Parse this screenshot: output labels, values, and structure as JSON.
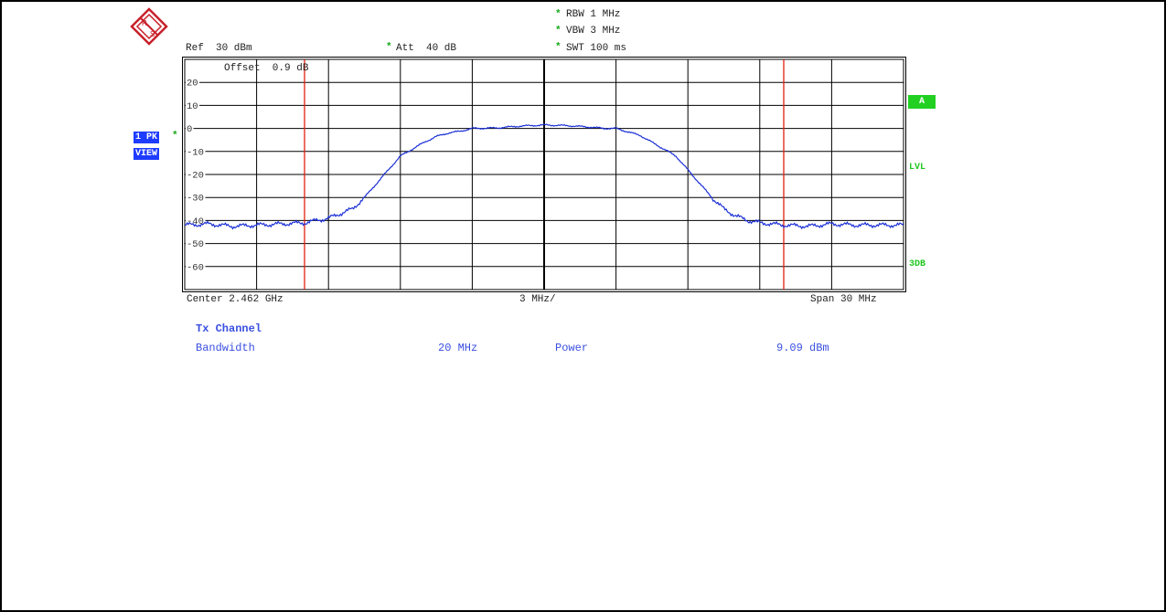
{
  "header": {
    "ref": "Ref  30 dBm",
    "att": "Att  40 dB",
    "rbw": "RBW 1 MHz",
    "vbw": "VBW 3 MHz",
    "swt": "SWT 100 ms",
    "offset": "Offset  0.9 dB",
    "star": "*"
  },
  "badges": {
    "trace": "1 PK",
    "view": "VIEW",
    "a": "A",
    "lvl": "LVL",
    "db3": "3DB"
  },
  "footer": {
    "center": "Center 2.462 GHz",
    "per_div": "3 MHz/",
    "span": "Span 30 MHz"
  },
  "results": {
    "title": "Tx Channel",
    "bandwidth_label": "Bandwidth",
    "bandwidth_value": "20 MHz",
    "power_label": "Power",
    "power_value": "9.09 dBm"
  },
  "colors": {
    "trace": "#1a2fd6",
    "markers": "#e02010",
    "grid": "#000000"
  },
  "chart_data": {
    "type": "line",
    "x_unit": "MHz offset from center",
    "xlim": [
      -15,
      15
    ],
    "ylim": [
      -70,
      30
    ],
    "y_tick_labels": [
      "20",
      "10",
      "0",
      "-10",
      "-20",
      "-30",
      "-40",
      "-50",
      "-60"
    ],
    "y_tick_values": [
      20,
      10,
      0,
      -10,
      -20,
      -30,
      -40,
      -50,
      -60
    ],
    "channel_lines_x": [
      -10,
      10
    ],
    "series": [
      {
        "x": [
          -15,
          -14,
          -13,
          -12,
          -11,
          -10,
          -9.5,
          -9,
          -8.5,
          -8,
          -7.5,
          -7,
          -6.5,
          -6,
          -5.5,
          -5,
          -4.5,
          -4,
          -3.5,
          -3,
          -2,
          -1,
          0,
          1,
          2,
          2.5,
          3,
          3.5,
          4,
          4.5,
          5,
          5.5,
          6,
          6.5,
          7,
          7.5,
          8,
          8.5,
          9,
          9.5,
          10,
          11,
          12,
          13,
          14,
          15
        ],
        "y": [
          -42,
          -41.5,
          -42.5,
          -42,
          -41.5,
          -41,
          -40,
          -39,
          -37,
          -35,
          -30,
          -24,
          -18,
          -12,
          -9,
          -6,
          -3.5,
          -2,
          -1.2,
          0,
          0.2,
          1,
          1.5,
          1.2,
          0.5,
          0,
          0,
          -1.5,
          -3,
          -6,
          -9,
          -12,
          -18,
          -24,
          -30,
          -35,
          -38,
          -40,
          -41,
          -41.5,
          -42,
          -42.5,
          -41.5,
          -42,
          -42,
          -42
        ]
      }
    ]
  }
}
